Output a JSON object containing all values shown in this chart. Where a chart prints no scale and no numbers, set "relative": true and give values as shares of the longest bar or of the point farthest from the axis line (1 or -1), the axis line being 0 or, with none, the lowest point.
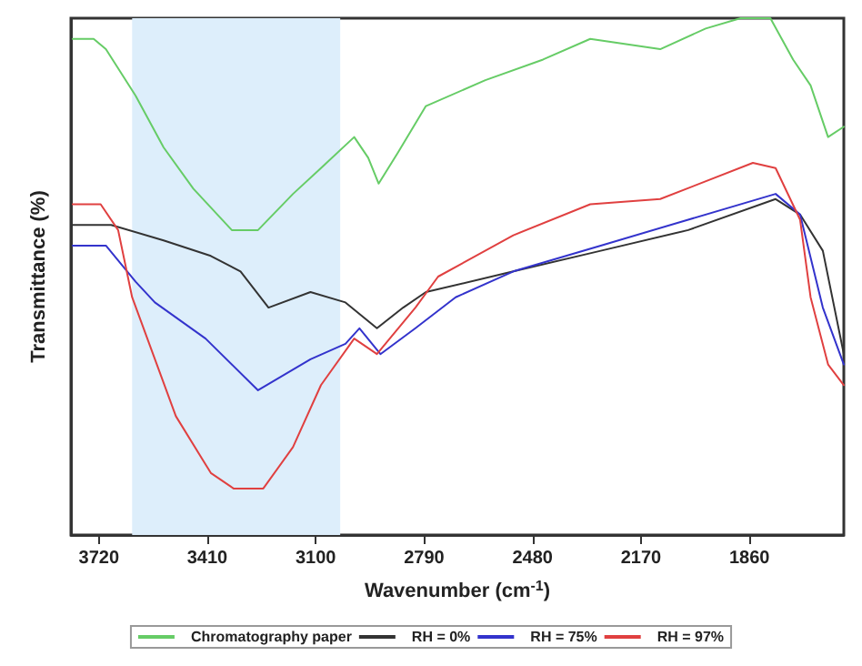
{
  "chart_data": {
    "type": "line",
    "relative": true,
    "xlabel": "Wavenumber (cm$^{-1}$)",
    "ylabel": "Transmittance (%)",
    "xlim": [
      3800,
      1590
    ],
    "xticks": [
      3720,
      3410,
      3100,
      2790,
      2480,
      2170,
      1860
    ],
    "legend": "bottom",
    "grid": false,
    "marker": "none",
    "line_style": "solid",
    "bands": [
      {
        "axis": "x",
        "from": 3625,
        "to": 3030,
        "color": "#ddeefb"
      }
    ],
    "series": [
      {
        "name": "Chromatography paper",
        "color": "#66cc66",
        "x": [
          3795,
          3735,
          3700,
          3615,
          3535,
          3450,
          3340,
          3265,
          3165,
          3085,
          2990,
          2950,
          2920,
          2865,
          2785,
          2615,
          2450,
          2315,
          2115,
          1985,
          1885,
          1800,
          1735,
          1685,
          1635,
          1590
        ],
        "values": [
          0.96,
          0.96,
          0.94,
          0.85,
          0.75,
          0.67,
          0.59,
          0.59,
          0.66,
          0.71,
          0.77,
          0.73,
          0.68,
          0.74,
          0.83,
          0.88,
          0.92,
          0.96,
          0.94,
          0.98,
          1.0,
          1.0,
          0.92,
          0.87,
          0.77,
          0.79
        ]
      },
      {
        "name": "RH = 0%",
        "color": "#333333",
        "x": [
          3795,
          3685,
          3535,
          3400,
          3315,
          3235,
          3115,
          3015,
          2925,
          2850,
          2785,
          2535,
          2285,
          2035,
          1785,
          1715,
          1650,
          1590
        ],
        "values": [
          0.6,
          0.6,
          0.57,
          0.54,
          0.51,
          0.44,
          0.47,
          0.45,
          0.4,
          0.44,
          0.47,
          0.51,
          0.55,
          0.59,
          0.65,
          0.62,
          0.55,
          0.35
        ]
      },
      {
        "name": "RH = 75%",
        "color": "#3333cc",
        "x": [
          3795,
          3700,
          3615,
          3560,
          3415,
          3265,
          3115,
          3015,
          2975,
          2915,
          2815,
          2700,
          2535,
          2285,
          2035,
          1785,
          1715,
          1650,
          1590
        ],
        "values": [
          0.56,
          0.56,
          0.49,
          0.45,
          0.38,
          0.28,
          0.34,
          0.37,
          0.4,
          0.35,
          0.4,
          0.46,
          0.51,
          0.56,
          0.61,
          0.66,
          0.62,
          0.44,
          0.33
        ]
      },
      {
        "name": "RH = 97%",
        "color": "#e04040",
        "x": [
          3795,
          3715,
          3665,
          3625,
          3500,
          3400,
          3335,
          3250,
          3165,
          3085,
          2990,
          2925,
          2815,
          2750,
          2535,
          2315,
          2115,
          1850,
          1785,
          1715,
          1685,
          1635,
          1590
        ],
        "values": [
          0.64,
          0.64,
          0.59,
          0.46,
          0.23,
          0.12,
          0.09,
          0.09,
          0.17,
          0.29,
          0.38,
          0.35,
          0.44,
          0.5,
          0.58,
          0.64,
          0.65,
          0.72,
          0.71,
          0.61,
          0.46,
          0.33,
          0.29
        ]
      }
    ]
  }
}
